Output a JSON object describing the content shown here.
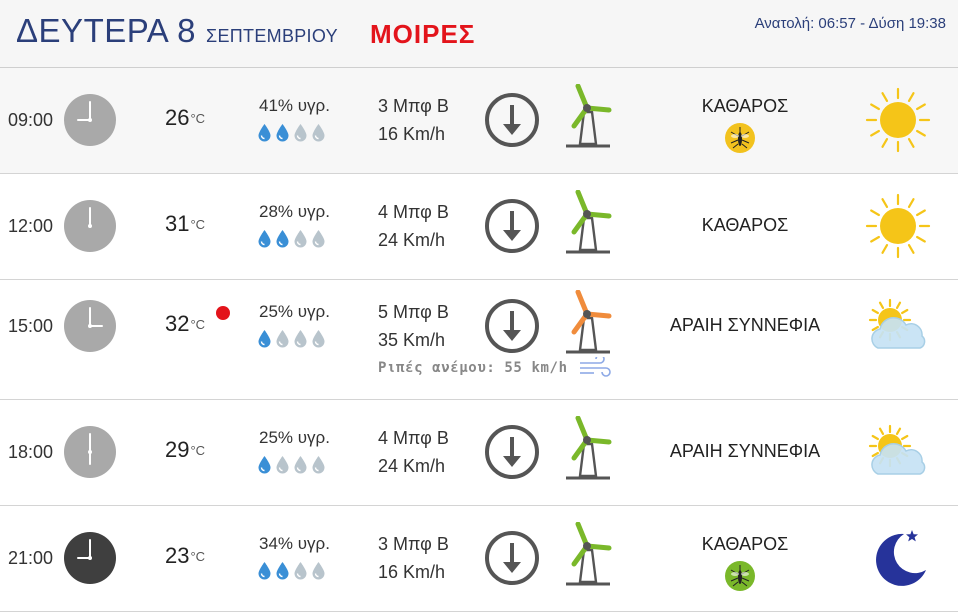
{
  "header": {
    "day": "ΔΕΥΤΕΡΑ 8",
    "month": "ΣΕΠΤΕΜΒΡΙΟΥ",
    "location": "ΜΟΙΡΕΣ",
    "sun_times": "Ανατολή: 06:57  - Δύση 19:38"
  },
  "colors": {
    "title_blue": "#2b3f7a",
    "location_red": "#e3141b",
    "windmill_green": "#7ab82a",
    "windmill_orange": "#f08c3c",
    "drop_blue": "#3a8fd6",
    "drop_grey": "#b8c4cc",
    "sun_yellow": "#f5c518",
    "moon_navy": "#26339a"
  },
  "rows": [
    {
      "time": "09:00",
      "temp": "26",
      "temp_unit": "°C",
      "humidity": "41% υγρ.",
      "drops_filled": 2,
      "wind_beaufort": "3 Μπφ Β",
      "wind_speed": "16 Km/h",
      "windmill_color": "green",
      "condition": "ΚΑΘΑΡΟΣ",
      "weather_icon": "sun-icon",
      "clock": "light",
      "mosquito": "yellow"
    },
    {
      "time": "12:00",
      "temp": "31",
      "temp_unit": "°C",
      "humidity": "28% υγρ.",
      "drops_filled": 2,
      "wind_beaufort": "4 Μπφ Β",
      "wind_speed": "24 Km/h",
      "windmill_color": "green",
      "condition": "ΚΑΘΑΡΟΣ",
      "weather_icon": "sun-icon",
      "clock": "light"
    },
    {
      "time": "15:00",
      "temp": "32",
      "temp_unit": "°C",
      "hot_marker": true,
      "humidity": "25% υγρ.",
      "drops_filled": 1,
      "wind_beaufort": "5 Μπφ Β",
      "wind_speed": "35 Km/h",
      "windmill_color": "orange",
      "gusts": "Ριπές ανέμου: 55 km/h",
      "condition": "ΑΡΑΙΗ ΣΥΝΝΕΦΙΑ",
      "weather_icon": "partly-cloudy-icon",
      "clock": "light"
    },
    {
      "time": "18:00",
      "temp": "29",
      "temp_unit": "°C",
      "humidity": "25% υγρ.",
      "drops_filled": 1,
      "wind_beaufort": "4 Μπφ Β",
      "wind_speed": "24 Km/h",
      "windmill_color": "green",
      "condition": "ΑΡΑΙΗ ΣΥΝΝΕΦΙΑ",
      "weather_icon": "partly-cloudy-icon",
      "clock": "light"
    },
    {
      "time": "21:00",
      "temp": "23",
      "temp_unit": "°C",
      "humidity": "34% υγρ.",
      "drops_filled": 2,
      "wind_beaufort": "3 Μπφ Β",
      "wind_speed": "16 Km/h",
      "windmill_color": "green",
      "condition": "ΚΑΘΑΡΟΣ",
      "weather_icon": "moon-icon",
      "clock": "dark",
      "mosquito": "green"
    }
  ]
}
